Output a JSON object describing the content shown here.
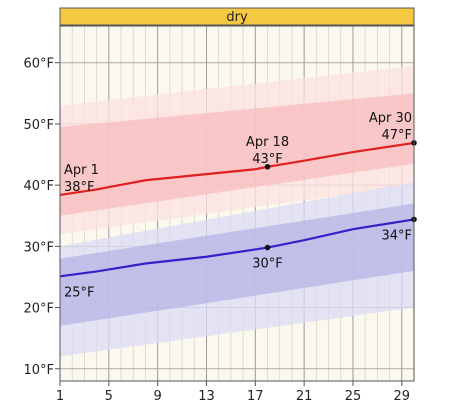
{
  "chart_data": {
    "type": "line",
    "band_label": "dry",
    "x_ticks": [
      1,
      5,
      9,
      13,
      17,
      21,
      25,
      29
    ],
    "xlim": [
      1,
      30
    ],
    "y_ticks": [
      "10°F",
      "20°F",
      "30°F",
      "40°F",
      "50°F",
      "60°F"
    ],
    "y_tick_values": [
      10,
      20,
      30,
      40,
      50,
      60
    ],
    "ylim": [
      8,
      66
    ],
    "grid": true,
    "series": [
      {
        "color": "#e02020",
        "points": [
          [
            1,
            38.4
          ],
          [
            4,
            39.3
          ],
          [
            8,
            40.8
          ],
          [
            13,
            41.8
          ],
          [
            17,
            42.6
          ],
          [
            18,
            43.0
          ],
          [
            21,
            44.0
          ],
          [
            25,
            45.4
          ],
          [
            30,
            46.9
          ]
        ],
        "band_outer": [
          [
            1,
            32.0,
            53.0
          ],
          [
            30,
            40.0,
            59.5
          ]
        ],
        "band_inner": [
          [
            1,
            35.0,
            49.5
          ],
          [
            30,
            43.5,
            55.0
          ]
        ],
        "band_colors": [
          "#fde2e2",
          "#f7bcbc"
        ]
      },
      {
        "color": "#3a1fc8",
        "points": [
          [
            1,
            25.1
          ],
          [
            4,
            25.9
          ],
          [
            8,
            27.2
          ],
          [
            13,
            28.3
          ],
          [
            17,
            29.5
          ],
          [
            18,
            29.8
          ],
          [
            21,
            31.0
          ],
          [
            25,
            32.8
          ],
          [
            30,
            34.4
          ]
        ],
        "band_outer": [
          [
            1,
            12.0,
            30.0
          ],
          [
            30,
            20.0,
            40.5
          ]
        ],
        "band_inner": [
          [
            1,
            17.0,
            28.0
          ],
          [
            30,
            26.0,
            37.0
          ]
        ],
        "band_colors": [
          "#dcdcf6",
          "#b4b4e6"
        ]
      }
    ],
    "annotations": [
      {
        "x": 1,
        "y": 38.4,
        "date": "Apr 1",
        "temp": "38°F",
        "series": 0,
        "marker": false
      },
      {
        "x": 18,
        "y": 43.0,
        "date": "Apr 18",
        "temp": "43°F",
        "series": 0,
        "marker": true
      },
      {
        "x": 30,
        "y": 46.9,
        "date": "Apr 30",
        "temp": "47°F",
        "series": 0,
        "marker": true
      },
      {
        "x": 1,
        "y": 25.1,
        "temp": "25°F",
        "series": 1,
        "marker": false
      },
      {
        "x": 18,
        "y": 29.8,
        "temp": "30°F",
        "series": 1,
        "marker": true
      },
      {
        "x": 30,
        "y": 34.4,
        "temp": "34°F",
        "series": 1,
        "marker": true
      }
    ]
  }
}
